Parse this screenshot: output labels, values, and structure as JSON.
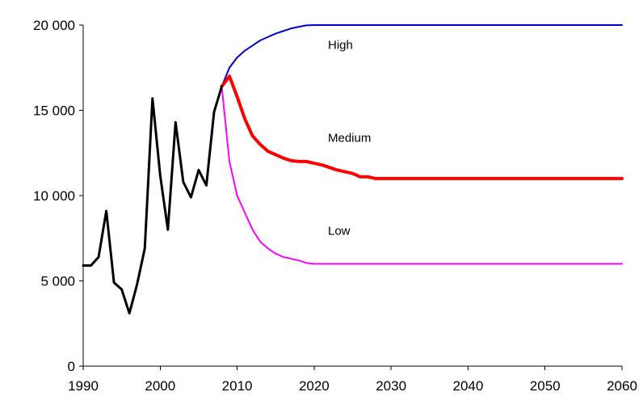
{
  "chart_data": {
    "type": "line",
    "xlim": [
      1990,
      2060
    ],
    "ylim": [
      0,
      20000
    ],
    "x_ticks": [
      "1990",
      "2000",
      "2010",
      "2020",
      "2030",
      "2040",
      "2050",
      "2060"
    ],
    "y_ticks": [
      "0",
      "5 000",
      "10 000",
      "15 000",
      "20 000"
    ],
    "grid": false,
    "series": [
      {
        "key": "historical",
        "color": "#000000",
        "width": 3,
        "points": [
          [
            1990,
            5900
          ],
          [
            1991,
            5900
          ],
          [
            1992,
            6400
          ],
          [
            1993,
            9100
          ],
          [
            1994,
            4900
          ],
          [
            1995,
            4500
          ],
          [
            1996,
            3100
          ],
          [
            1997,
            4800
          ],
          [
            1998,
            6900
          ],
          [
            1999,
            15700
          ],
          [
            2000,
            11200
          ],
          [
            2001,
            8000
          ],
          [
            2002,
            14300
          ],
          [
            2003,
            10800
          ],
          [
            2004,
            9900
          ],
          [
            2005,
            11500
          ],
          [
            2006,
            10600
          ],
          [
            2007,
            14900
          ],
          [
            2008,
            16400
          ]
        ]
      },
      {
        "key": "high",
        "name": "High",
        "color": "#0000cc",
        "width": 2,
        "points": [
          [
            2008,
            16400
          ],
          [
            2009,
            17500
          ],
          [
            2010,
            18100
          ],
          [
            2011,
            18500
          ],
          [
            2012,
            18800
          ],
          [
            2013,
            19100
          ],
          [
            2014,
            19300
          ],
          [
            2015,
            19500
          ],
          [
            2016,
            19650
          ],
          [
            2017,
            19800
          ],
          [
            2018,
            19900
          ],
          [
            2019,
            19980
          ],
          [
            2020,
            20000
          ],
          [
            2030,
            20000
          ],
          [
            2040,
            20000
          ],
          [
            2050,
            20000
          ],
          [
            2060,
            20000
          ]
        ]
      },
      {
        "key": "medium",
        "name": "Medium",
        "color": "#ff0000",
        "width": 4,
        "points": [
          [
            2008,
            16400
          ],
          [
            2009,
            17000
          ],
          [
            2010,
            15800
          ],
          [
            2011,
            14500
          ],
          [
            2012,
            13500
          ],
          [
            2013,
            13000
          ],
          [
            2014,
            12600
          ],
          [
            2015,
            12400
          ],
          [
            2016,
            12200
          ],
          [
            2017,
            12050
          ],
          [
            2018,
            12000
          ],
          [
            2019,
            12000
          ],
          [
            2020,
            11900
          ],
          [
            2021,
            11800
          ],
          [
            2022,
            11650
          ],
          [
            2023,
            11500
          ],
          [
            2024,
            11400
          ],
          [
            2025,
            11300
          ],
          [
            2026,
            11100
          ],
          [
            2027,
            11100
          ],
          [
            2028,
            11000
          ],
          [
            2030,
            11000
          ],
          [
            2040,
            11000
          ],
          [
            2050,
            11000
          ],
          [
            2060,
            11000
          ]
        ]
      },
      {
        "key": "low",
        "name": "Low",
        "color": "#ff00ff",
        "width": 2,
        "points": [
          [
            2008,
            16400
          ],
          [
            2009,
            12000
          ],
          [
            2010,
            10000
          ],
          [
            2011,
            9000
          ],
          [
            2012,
            8000
          ],
          [
            2013,
            7300
          ],
          [
            2014,
            6900
          ],
          [
            2015,
            6600
          ],
          [
            2016,
            6400
          ],
          [
            2017,
            6300
          ],
          [
            2018,
            6200
          ],
          [
            2019,
            6050
          ],
          [
            2020,
            6000
          ],
          [
            2030,
            6000
          ],
          [
            2040,
            6000
          ],
          [
            2050,
            6000
          ],
          [
            2060,
            6000
          ]
        ]
      }
    ],
    "annotations": [
      {
        "text": "High",
        "x": 2021.8,
        "y": 18600
      },
      {
        "text": "Medium",
        "x": 2021.8,
        "y": 13150
      },
      {
        "text": "Low",
        "x": 2021.8,
        "y": 7700
      }
    ]
  }
}
